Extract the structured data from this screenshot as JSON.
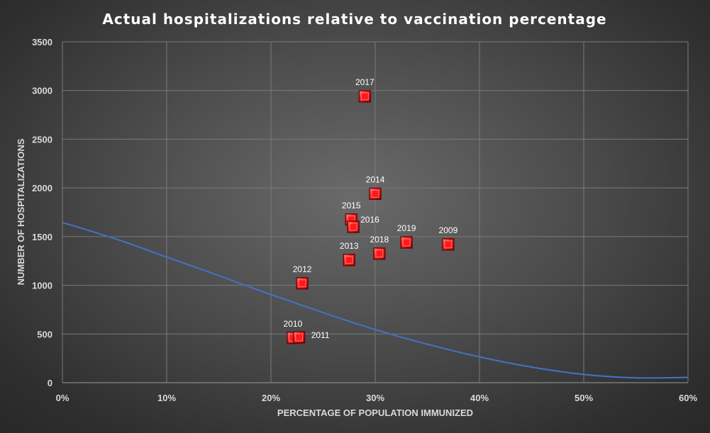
{
  "chart_data": {
    "type": "scatter",
    "title": "Actual hospitalizations relative to vaccination percentage",
    "xlabel": "PERCENTAGE OF POPULATION IMMUNIZED",
    "ylabel": "NUMBER OF HOSPITALIZATIONS",
    "xlim": [
      0,
      0.6
    ],
    "ylim": [
      0,
      3500
    ],
    "x_ticks": [
      "0%",
      "10%",
      "20%",
      "30%",
      "40%",
      "50%",
      "60%"
    ],
    "y_ticks": [
      "0",
      "500",
      "1000",
      "1500",
      "2000",
      "2500",
      "3000",
      "3500"
    ],
    "grid": true,
    "marker_color": "#ff1a1a",
    "trendline_color": "#4472c4",
    "points": [
      {
        "label": "2009",
        "x": 0.37,
        "y": 1420
      },
      {
        "label": "2010",
        "x": 0.221,
        "y": 460
      },
      {
        "label": "2011",
        "x": 0.227,
        "y": 465
      },
      {
        "label": "2012",
        "x": 0.23,
        "y": 1020
      },
      {
        "label": "2013",
        "x": 0.275,
        "y": 1260
      },
      {
        "label": "2014",
        "x": 0.3,
        "y": 1940
      },
      {
        "label": "2015",
        "x": 0.277,
        "y": 1675
      },
      {
        "label": "2016",
        "x": 0.279,
        "y": 1600
      },
      {
        "label": "2017",
        "x": 0.29,
        "y": 2940
      },
      {
        "label": "2018",
        "x": 0.304,
        "y": 1325
      },
      {
        "label": "2019",
        "x": 0.33,
        "y": 1440
      }
    ],
    "trendline": {
      "type": "polynomial",
      "x": [
        0,
        0.05,
        0.1,
        0.15,
        0.2,
        0.25,
        0.3,
        0.35,
        0.4,
        0.45,
        0.5,
        0.55,
        0.6
      ],
      "y": [
        1645,
        1480,
        1290,
        1100,
        905,
        720,
        545,
        395,
        265,
        160,
        85,
        50,
        55
      ]
    }
  }
}
